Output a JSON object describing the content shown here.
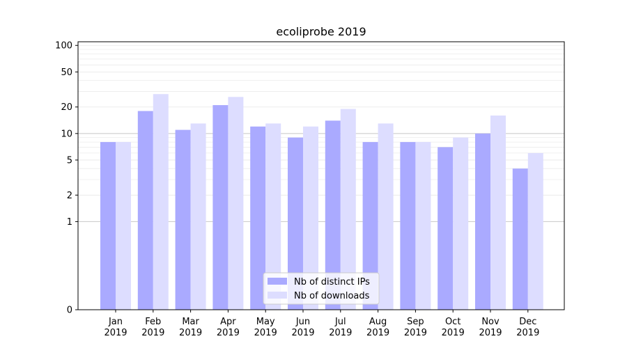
{
  "chart_data": {
    "type": "bar",
    "title": "ecoliprobe 2019",
    "xlabel": "",
    "ylabel": "",
    "y_scale": "symlog",
    "ylim": [
      0,
      110
    ],
    "yticks": [
      0,
      1,
      2,
      5,
      10,
      20,
      50,
      100
    ],
    "ytick_labels": [
      "0",
      "1",
      "2",
      "5",
      "10",
      "20",
      "50",
      "100"
    ],
    "categories": [
      "Jan\n2019",
      "Feb\n2019",
      "Mar\n2019",
      "Apr\n2019",
      "May\n2019",
      "Jun\n2019",
      "Jul\n2019",
      "Aug\n2019",
      "Sep\n2019",
      "Oct\n2019",
      "Nov\n2019",
      "Dec\n2019"
    ],
    "category_lines": [
      [
        "Jan",
        "2019"
      ],
      [
        "Feb",
        "2019"
      ],
      [
        "Mar",
        "2019"
      ],
      [
        "Apr",
        "2019"
      ],
      [
        "May",
        "2019"
      ],
      [
        "Jun",
        "2019"
      ],
      [
        "Jul",
        "2019"
      ],
      [
        "Aug",
        "2019"
      ],
      [
        "Sep",
        "2019"
      ],
      [
        "Oct",
        "2019"
      ],
      [
        "Nov",
        "2019"
      ],
      [
        "Dec",
        "2019"
      ]
    ],
    "series": [
      {
        "name": "Nb of distinct IPs",
        "color": "#aaaaff",
        "values": [
          8,
          18,
          11,
          21,
          12,
          9,
          14,
          8,
          8,
          7,
          10,
          4
        ]
      },
      {
        "name": "Nb of downloads",
        "color": "#ddddff",
        "values": [
          8,
          28,
          13,
          26,
          13,
          12,
          19,
          13,
          8,
          9,
          16,
          6
        ]
      }
    ],
    "grid": true,
    "legend_position": "bottom-center"
  }
}
